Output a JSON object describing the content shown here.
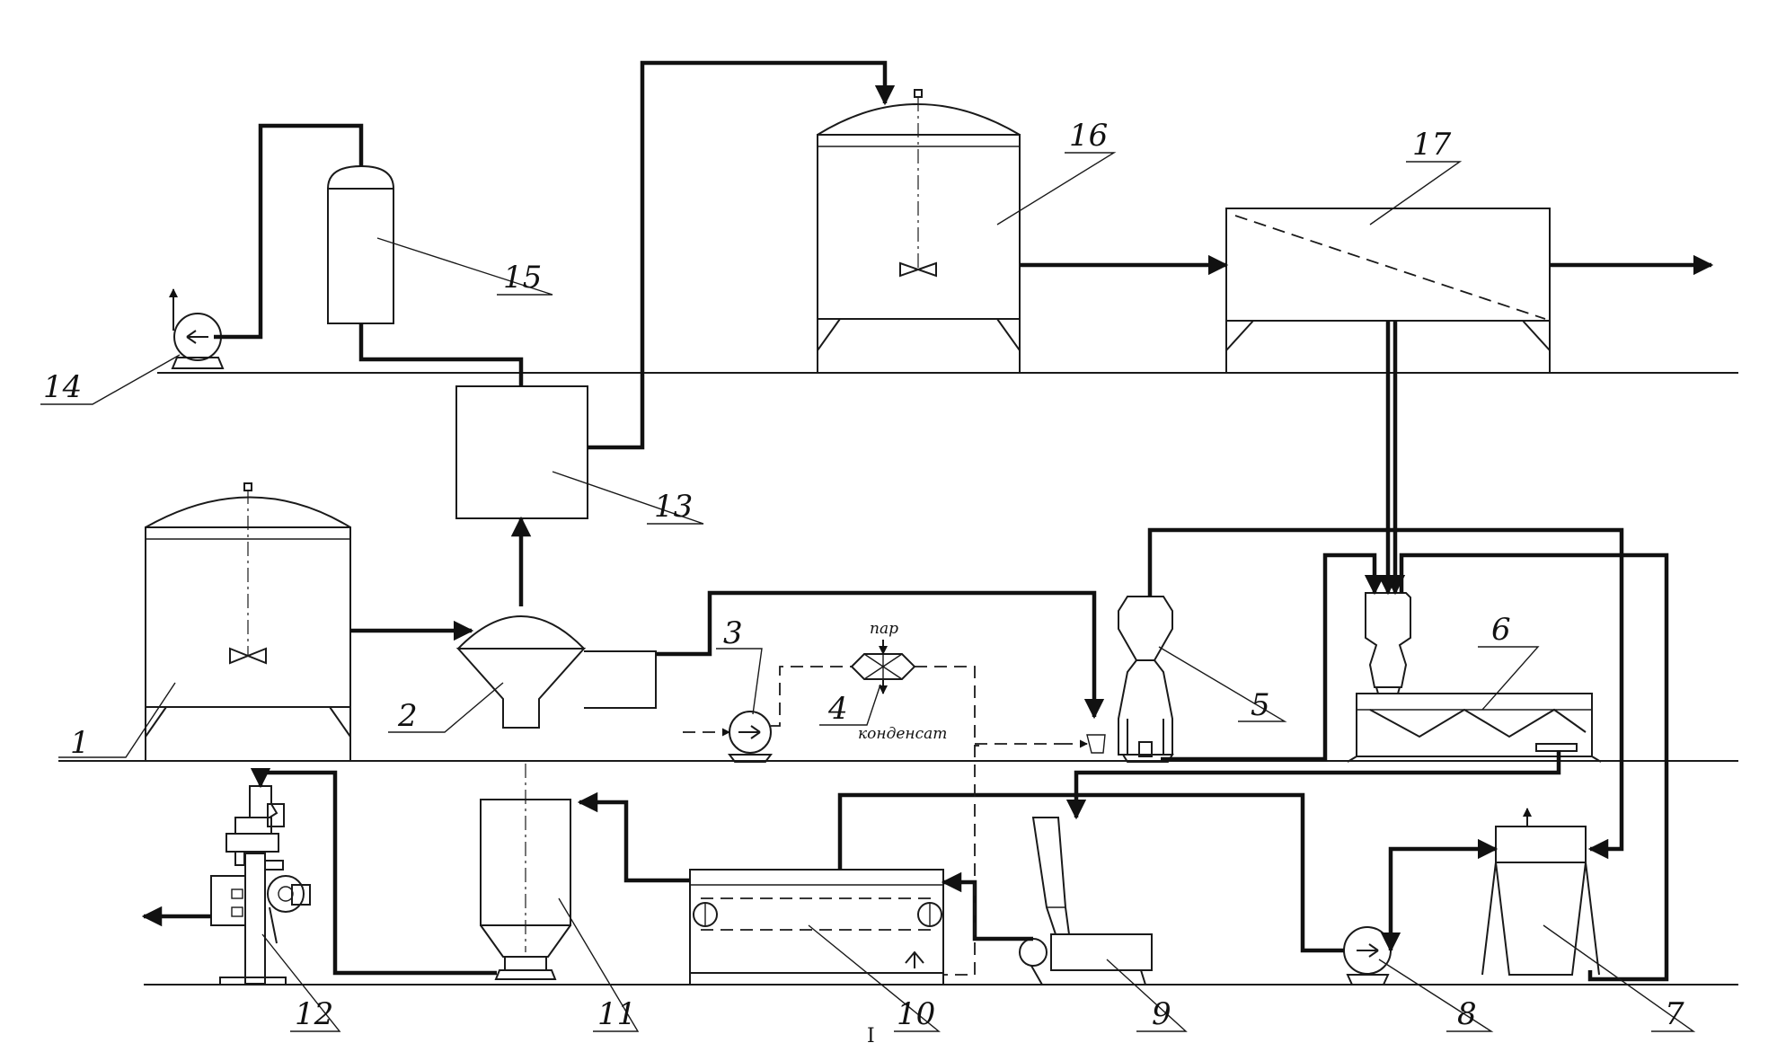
{
  "colors": {
    "line": "#111111",
    "background": "#ffffff"
  },
  "labels": {
    "n1": "1",
    "n2": "2",
    "n3": "3",
    "n4": "4",
    "n5": "5",
    "n6": "6",
    "n7": "7",
    "n8": "8",
    "n9": "9",
    "n10": "10",
    "n11": "11",
    "n12": "12",
    "n13": "13",
    "n14": "14",
    "n15": "15",
    "n16": "16",
    "n17": "17"
  },
  "annotations": {
    "steam": "пар",
    "condensate": "конденсат"
  },
  "caption": "I"
}
